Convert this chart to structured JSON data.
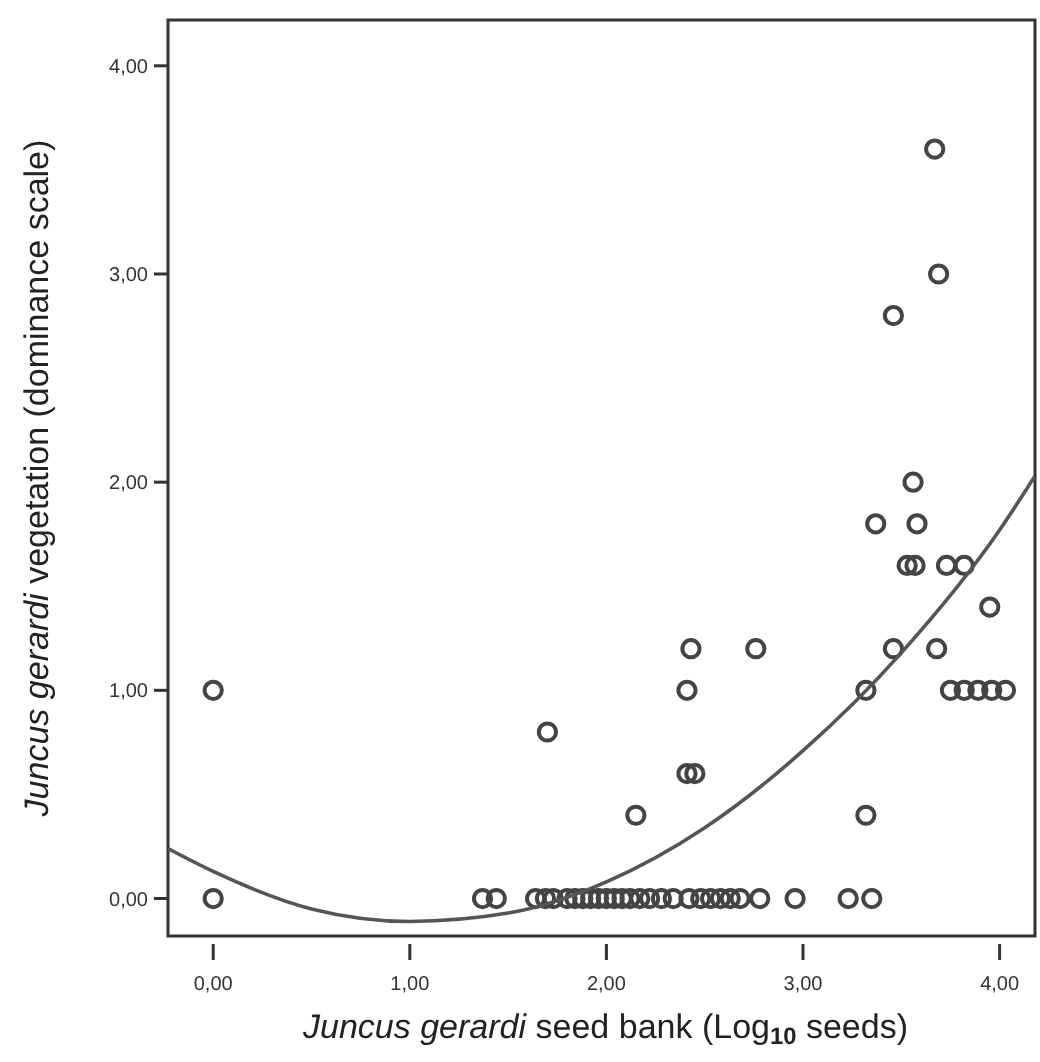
{
  "chart_data": {
    "type": "scatter",
    "xlabel": "Juncus gerardi seed bank (Log$_{10}$ seeds)",
    "ylabel": "Juncus gerardi vegetation (dominance scale)",
    "xlim": [
      -0.23,
      4.18
    ],
    "ylim": [
      -0.18,
      4.22
    ],
    "xticks": [
      {
        "value": 0,
        "label": "0,00"
      },
      {
        "value": 1,
        "label": "1,00"
      },
      {
        "value": 2,
        "label": "2,00"
      },
      {
        "value": 3,
        "label": "3,00"
      },
      {
        "value": 4,
        "label": "4,00"
      }
    ],
    "yticks": [
      {
        "value": 0,
        "label": "0,00"
      },
      {
        "value": 1,
        "label": "1,00"
      },
      {
        "value": 2,
        "label": "2,00"
      },
      {
        "value": 3,
        "label": "3,00"
      },
      {
        "value": 4,
        "label": "4,00"
      }
    ],
    "grid": false,
    "marker": "circle",
    "series": [
      {
        "color": "#444444",
        "x": [
          0,
          0,
          1.7,
          2.15,
          2.41,
          2.41,
          2.45,
          2.43,
          2.76,
          3.32,
          3.32,
          3.46,
          3.68,
          3.37,
          3.58,
          3.53,
          3.57,
          3.73,
          3.82,
          3.95,
          3.75,
          3.82,
          3.89,
          3.96,
          4.03,
          2.96,
          3.23,
          3.35,
          3.67,
          3.69,
          3.46,
          3.56,
          1.37,
          1.44,
          1.64,
          1.69,
          1.73,
          1.8,
          1.84,
          1.88,
          1.92,
          1.96,
          2.0,
          2.04,
          2.08,
          2.12,
          2.17,
          2.22,
          2.28,
          2.34,
          2.42,
          2.48,
          2.53,
          2.58,
          2.63,
          2.68,
          2.78
        ],
        "values": [
          1.0,
          0,
          0.8,
          0.4,
          1.0,
          0.6,
          0.6,
          1.2,
          1.2,
          1.0,
          0.4,
          1.2,
          1.2,
          1.8,
          1.8,
          1.6,
          1.6,
          1.6,
          1.6,
          1.4,
          1.0,
          1.0,
          1.0,
          1.0,
          1.0,
          0,
          0,
          0,
          3.6,
          3.0,
          2.8,
          2.0,
          0,
          0,
          0,
          0,
          0,
          0,
          0,
          0,
          0,
          0,
          0,
          0,
          0,
          0,
          0,
          0,
          0,
          0,
          0,
          0,
          0,
          0,
          0,
          0,
          0
        ]
      },
      {
        "type": "line",
        "color": "#555555",
        "marker": "none",
        "x": [
          -0.23,
          0,
          0.5,
          1,
          1.5,
          2,
          2.5,
          3,
          3.5,
          4,
          4.18
        ],
        "values": [
          0.24,
          0.13,
          -0.05,
          -0.11,
          -0.07,
          0.08,
          0.34,
          0.71,
          1.18,
          1.77,
          2.03
        ]
      }
    ]
  }
}
